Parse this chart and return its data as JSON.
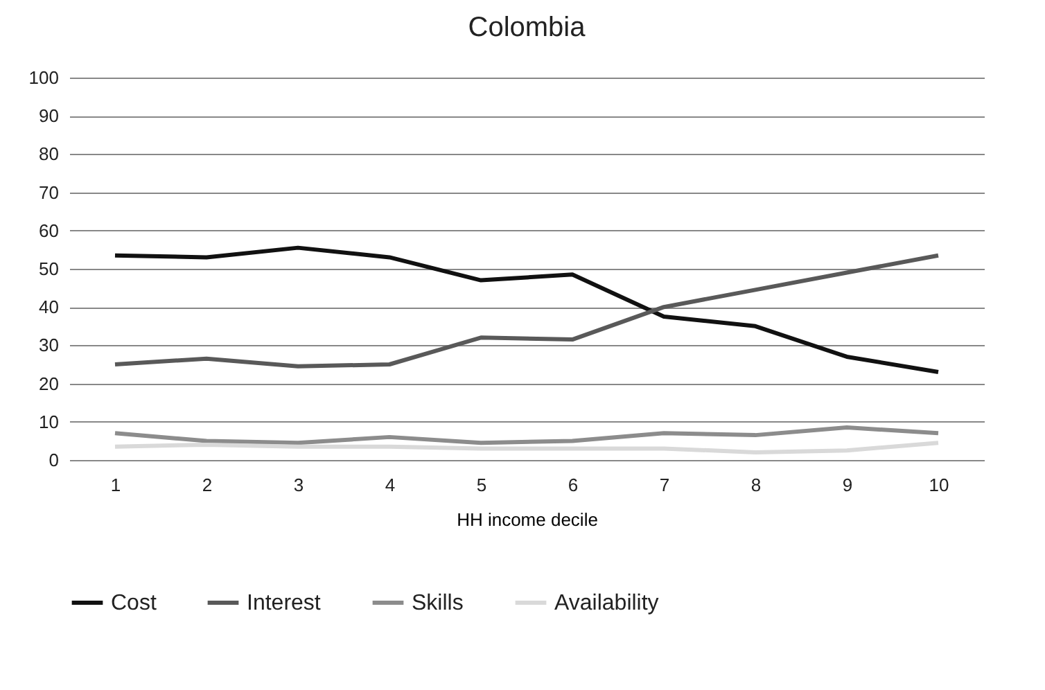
{
  "chart_data": {
    "type": "line",
    "title": "Colombia",
    "xlabel": "HH income decile",
    "categories": [
      "1",
      "2",
      "3",
      "4",
      "5",
      "6",
      "7",
      "8",
      "9",
      "10"
    ],
    "series": [
      {
        "name": "Cost",
        "color": "#111111",
        "values": [
          53.5,
          53,
          55.5,
          53,
          47,
          48.5,
          37.5,
          35,
          27,
          23
        ]
      },
      {
        "name": "Interest",
        "color": "#595959",
        "values": [
          25,
          26.5,
          24.5,
          25,
          32,
          31.5,
          40,
          44.5,
          49,
          53.5
        ]
      },
      {
        "name": "Skills",
        "color": "#8c8c8c",
        "values": [
          7,
          5,
          4.5,
          6,
          4.5,
          5,
          7,
          6.5,
          8.5,
          7
        ]
      },
      {
        "name": "Availability",
        "color": "#d9d9d9",
        "values": [
          3.5,
          4,
          3.5,
          3.5,
          3,
          3,
          3,
          2,
          2.5,
          4.5
        ]
      }
    ],
    "ylim": [
      0,
      100
    ],
    "yticks": [
      0,
      10,
      20,
      30,
      40,
      50,
      60,
      70,
      80,
      90,
      100
    ],
    "grid": "y",
    "legend": "bottom",
    "marker": "none",
    "line_style": "solid"
  }
}
